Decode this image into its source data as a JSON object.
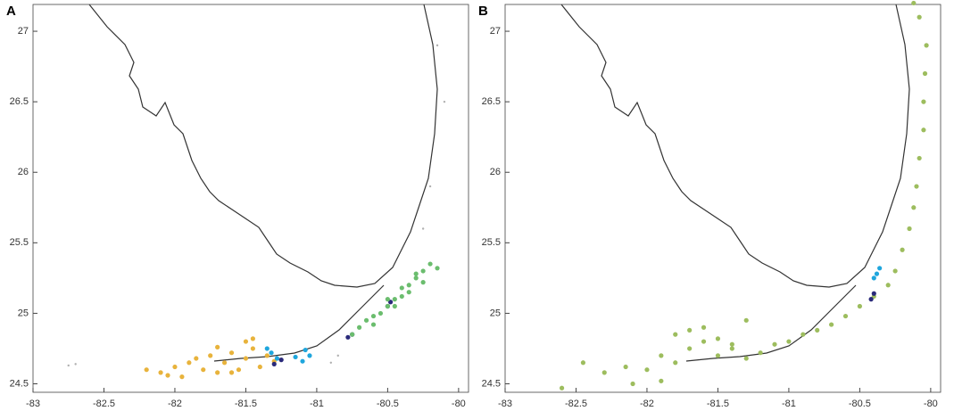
{
  "chart_data": [
    {
      "type": "scatter",
      "panel_label": "A",
      "xlim": [
        -83,
        -79.93
      ],
      "ylim": [
        24.44,
        27.19
      ],
      "xticks": [
        -83,
        -82.5,
        -82,
        -81.5,
        -81,
        -80.5,
        -80
      ],
      "yticks": [
        24.5,
        25,
        25.5,
        26,
        26.5,
        27
      ],
      "series": [
        {
          "color": "#b0b0b0",
          "x": [
            -82.75,
            -82.7,
            -80.9,
            -80.85,
            -80.25,
            -80.2,
            -80.1,
            -80.15
          ],
          "y": [
            24.63,
            24.64,
            24.65,
            24.7,
            25.6,
            25.9,
            26.5,
            26.9
          ]
        },
        {
          "color": "#e8b33c",
          "x": [
            -82.2,
            -82.1,
            -82.0,
            -81.95,
            -81.9,
            -81.8,
            -81.75,
            -81.7,
            -81.65,
            -81.6,
            -81.55,
            -81.5,
            -81.45,
            -81.4,
            -81.35,
            -81.3,
            -82.05,
            -81.85,
            -81.6,
            -81.5,
            -81.7,
            -81.45
          ],
          "y": [
            24.6,
            24.58,
            24.62,
            24.55,
            24.65,
            24.6,
            24.7,
            24.58,
            24.65,
            24.72,
            24.6,
            24.68,
            24.75,
            24.62,
            24.7,
            24.66,
            24.56,
            24.68,
            24.58,
            24.8,
            24.76,
            24.82
          ]
        },
        {
          "color": "#1fa6dd",
          "x": [
            -81.32,
            -81.28,
            -81.35,
            -81.08,
            -81.05,
            -81.1,
            -81.15
          ],
          "y": [
            24.72,
            24.68,
            24.75,
            24.74,
            24.7,
            24.66,
            24.69
          ]
        },
        {
          "color": "#2a2a7a",
          "x": [
            -80.78,
            -80.75,
            -80.5,
            -80.48,
            -81.3,
            -81.25
          ],
          "y": [
            24.83,
            24.85,
            25.05,
            25.08,
            24.64,
            24.67
          ]
        },
        {
          "color": "#6bbd6e",
          "x": [
            -80.75,
            -80.7,
            -80.65,
            -80.6,
            -80.55,
            -80.5,
            -80.45,
            -80.4,
            -80.35,
            -80.3,
            -80.25,
            -80.2,
            -80.6,
            -80.5,
            -80.4,
            -80.3,
            -80.45,
            -80.35,
            -80.25,
            -80.15
          ],
          "y": [
            24.85,
            24.9,
            24.95,
            24.92,
            25.0,
            25.05,
            25.1,
            25.12,
            25.2,
            25.25,
            25.3,
            25.35,
            24.98,
            25.1,
            25.18,
            25.28,
            25.05,
            25.15,
            25.22,
            25.32
          ]
        }
      ]
    },
    {
      "type": "scatter",
      "panel_label": "B",
      "xlim": [
        -83,
        -79.93
      ],
      "ylim": [
        24.44,
        27.19
      ],
      "xticks": [
        -83,
        -82.5,
        -82,
        -81.5,
        -81,
        -80.5,
        -80
      ],
      "yticks": [
        24.5,
        25,
        25.5,
        26,
        26.5,
        27
      ],
      "series": [
        {
          "color": "#9dbd5e",
          "x": [
            -82.6,
            -82.45,
            -82.3,
            -82.15,
            -82.0,
            -81.9,
            -81.8,
            -81.7,
            -81.6,
            -81.5,
            -81.4,
            -81.3,
            -81.2,
            -81.1,
            -81.0,
            -80.9,
            -80.8,
            -80.7,
            -80.6,
            -80.5,
            -80.4,
            -80.3,
            -80.25,
            -80.2,
            -80.15,
            -80.12,
            -80.1,
            -80.08,
            -80.05,
            -80.05,
            -80.04,
            -80.03,
            -80.08,
            -80.12,
            -81.8,
            -81.6,
            -81.5,
            -81.4,
            -81.7,
            -81.3,
            -82.1,
            -81.9
          ],
          "y": [
            24.47,
            24.65,
            24.58,
            24.62,
            24.6,
            24.7,
            24.65,
            24.75,
            24.8,
            24.7,
            24.75,
            24.68,
            24.72,
            24.78,
            24.8,
            24.85,
            24.88,
            24.92,
            24.98,
            25.05,
            25.12,
            25.2,
            25.3,
            25.45,
            25.6,
            25.75,
            25.9,
            26.1,
            26.3,
            26.5,
            26.7,
            26.9,
            27.1,
            27.2,
            24.85,
            24.9,
            24.82,
            24.78,
            24.88,
            24.95,
            24.5,
            24.52
          ]
        },
        {
          "color": "#1fa6dd",
          "x": [
            -80.38,
            -80.36,
            -80.4
          ],
          "y": [
            25.28,
            25.32,
            25.25
          ]
        },
        {
          "color": "#2a2a7a",
          "x": [
            -80.42,
            -80.4
          ],
          "y": [
            25.1,
            25.14
          ]
        }
      ]
    }
  ]
}
